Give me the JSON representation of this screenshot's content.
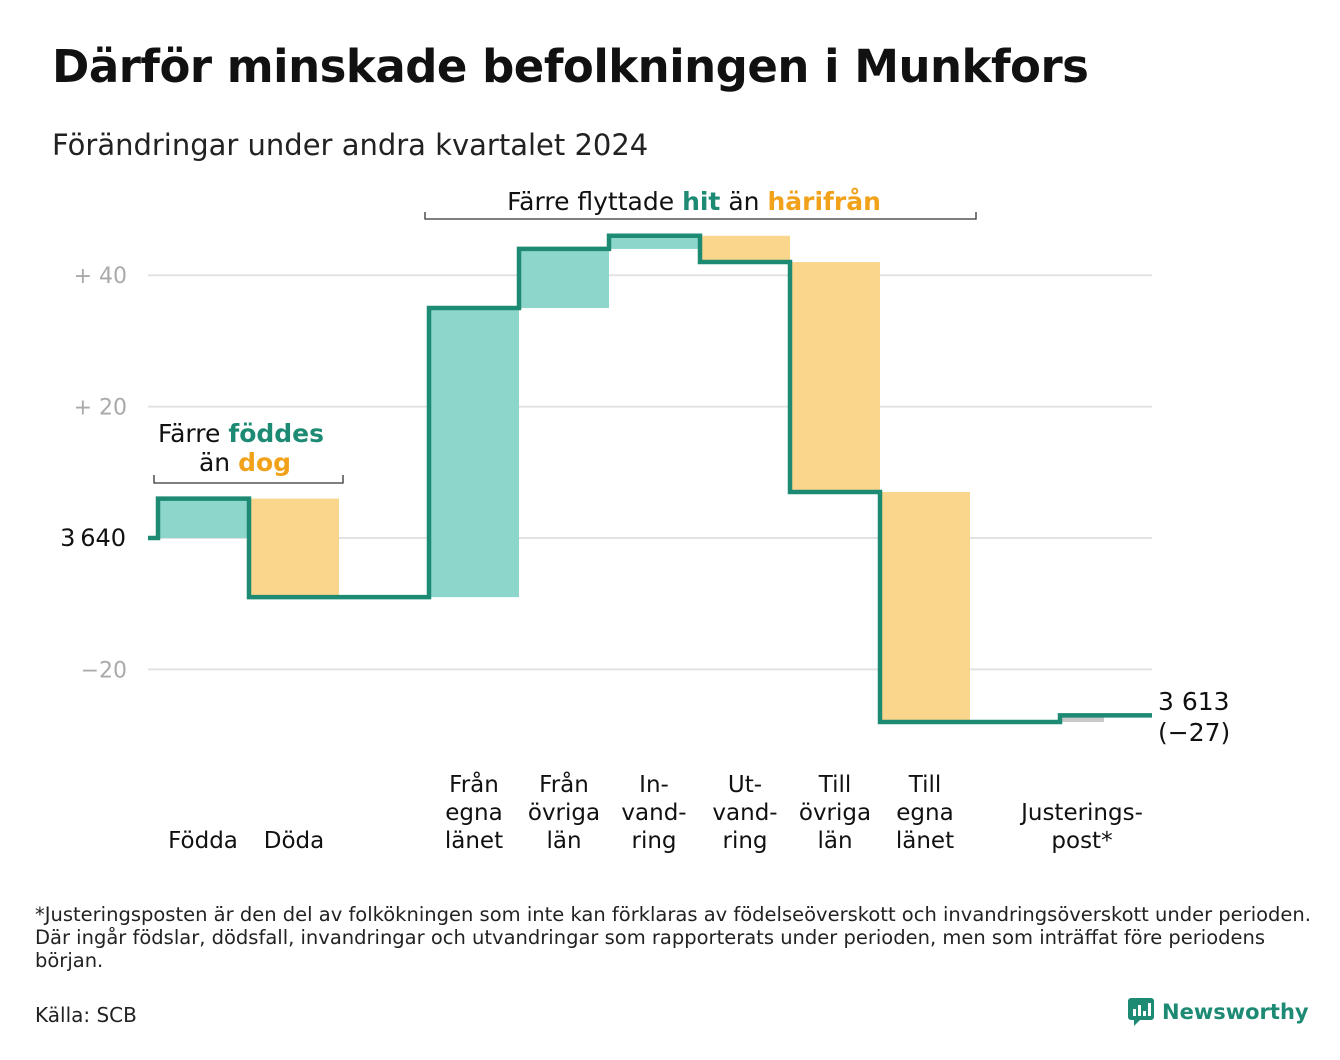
{
  "header": {
    "title": "Därför minskade befolkningen i Munkfors",
    "subtitle": "Förändringar under andra kvartalet 2024"
  },
  "chart_data": {
    "type": "waterfall",
    "start_value": 3640,
    "end_value": 3613,
    "end_label_value": "3 613",
    "end_label_change": "(−27)",
    "baseline_label": "3 640",
    "y_ticks": [
      {
        "value": 40,
        "label": "+  40"
      },
      {
        "value": 20,
        "label": "+  20"
      },
      {
        "value": 0,
        "label": ""
      },
      {
        "value": -20,
        "label": "−20"
      }
    ],
    "ylim": [
      -28,
      46
    ],
    "steps": [
      {
        "key": "fodda",
        "label": [
          "Födda"
        ],
        "change": 6,
        "kind": "inflow"
      },
      {
        "key": "doda",
        "label": [
          "Döda"
        ],
        "change": -15,
        "kind": "outflow"
      },
      {
        "key": "fran-egna",
        "label": [
          "Från",
          "egna",
          "länet"
        ],
        "change": 44,
        "kind": "inflow"
      },
      {
        "key": "fran-ovriga",
        "label": [
          "Från",
          "övriga",
          "län"
        ],
        "change": 9,
        "kind": "inflow"
      },
      {
        "key": "invandring",
        "label": [
          "In-",
          "vand-",
          "ring"
        ],
        "change": 2,
        "kind": "inflow"
      },
      {
        "key": "utvandring",
        "label": [
          "Ut-",
          "vand-",
          "ring"
        ],
        "change": -4,
        "kind": "outflow"
      },
      {
        "key": "till-ovriga",
        "label": [
          "Till",
          "övriga",
          "län"
        ],
        "change": -35,
        "kind": "outflow"
      },
      {
        "key": "till-egna",
        "label": [
          "Till",
          "egna",
          "länet"
        ],
        "change": -35,
        "kind": "outflow"
      },
      {
        "key": "justering",
        "label": [
          "Justerings-",
          "post*"
        ],
        "change": 1,
        "kind": "adjustment"
      }
    ],
    "annotations": [
      {
        "key": "births",
        "pre": "Färre",
        "hl1": "föddes",
        "mid": "än",
        "hl2": "dog"
      },
      {
        "key": "moves",
        "pre": "Färre flyttade",
        "hl1": "hit",
        "mid": "än",
        "hl2": "härifrån"
      }
    ],
    "colors": {
      "line": "#1d8a74",
      "inflow": "#8dd6cc",
      "outflow": "#fad58c",
      "adjustment": "#c8c8c8",
      "grid": "#e2e2e2",
      "hl_in": "#1d8a74",
      "hl_out": "#f2a21a",
      "tick": "#aaaaaa"
    }
  },
  "footer": {
    "footnote": "*Justeringsposten är den del av folkökningen som inte kan förklaras av födelseöverskott och invandringsöverskott under perioden. Där ingår födslar, dödsfall, invandringar och utvandringar som rapporterats under perioden, men som inträffat före periodens början.",
    "source": "Källa: SCB",
    "brand": "Newsworthy"
  }
}
